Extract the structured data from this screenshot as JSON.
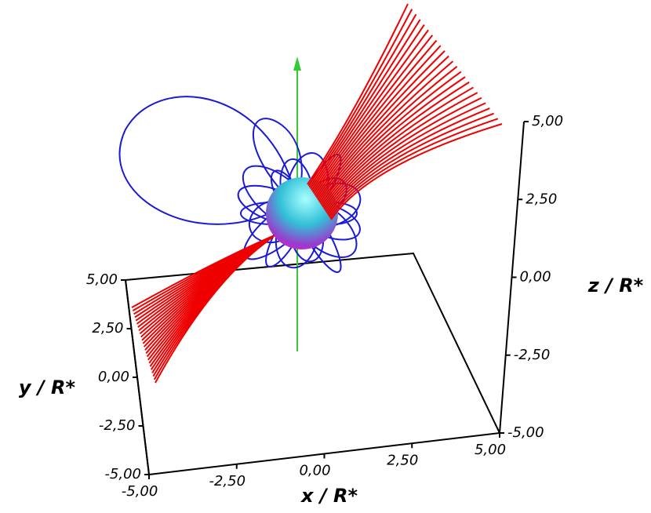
{
  "chart_data": {
    "type": "field-lines-3d",
    "xlabel": "x / R*",
    "ylabel": "y / R*",
    "zlabel": "z / R*",
    "xlim": [
      -5,
      5
    ],
    "ylim": [
      -5,
      5
    ],
    "zlim": [
      -5,
      5
    ],
    "xticks": [
      {
        "value": -5,
        "label": "-5,00"
      },
      {
        "value": -2.5,
        "label": "-2,50"
      },
      {
        "value": 0,
        "label": "0,00"
      },
      {
        "value": 2.5,
        "label": "2,50"
      },
      {
        "value": 5,
        "label": "5,00"
      }
    ],
    "yticks": [
      {
        "value": -5,
        "label": "-5,00"
      },
      {
        "value": -2.5,
        "label": "-2,50"
      },
      {
        "value": 0,
        "label": "0,00"
      },
      {
        "value": 2.5,
        "label": "2,50"
      },
      {
        "value": 5,
        "label": "5,00"
      }
    ],
    "zticks": [
      {
        "value": -5,
        "label": "-5,00"
      },
      {
        "value": -2.5,
        "label": "-2,50"
      },
      {
        "value": 0,
        "label": "0,00"
      },
      {
        "value": 2.5,
        "label": "2,50"
      },
      {
        "value": 5,
        "label": "5,00"
      }
    ],
    "open_line_color": "#ee0000",
    "closed_line_color": "#1a1ad8",
    "axis_color": "#33cc33"
  }
}
